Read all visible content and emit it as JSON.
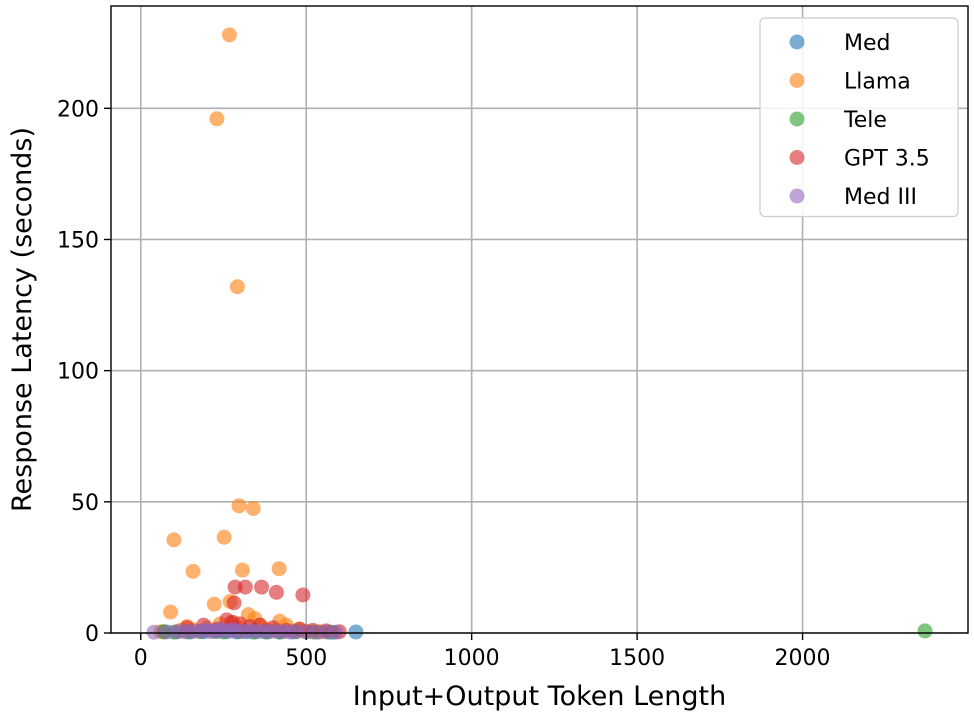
{
  "chart_data": {
    "type": "scatter",
    "title": "",
    "xlabel": "Input+Output Token Length",
    "ylabel": "Response Latency (seconds)",
    "xlim": [
      -90,
      2500
    ],
    "ylim": [
      0,
      239
    ],
    "xticks": [
      0,
      500,
      1000,
      1500,
      2000
    ],
    "yticks": [
      0,
      50,
      100,
      150,
      200
    ],
    "grid": true,
    "legend_position": "top-right",
    "marker_alpha": 0.6,
    "series": [
      {
        "name": "Med",
        "color": "#1f77b4",
        "points": [
          [
            70,
            0.4
          ],
          [
            110,
            0.5
          ],
          [
            150,
            0.4
          ],
          [
            190,
            0.5
          ],
          [
            230,
            0.6
          ],
          [
            260,
            0.5
          ],
          [
            290,
            0.4
          ],
          [
            320,
            0.5
          ],
          [
            350,
            0.5
          ],
          [
            380,
            0.4
          ],
          [
            420,
            0.5
          ],
          [
            460,
            0.4
          ],
          [
            500,
            0.5
          ],
          [
            540,
            0.4
          ],
          [
            580,
            0.3
          ],
          [
            650,
            0.4
          ]
        ]
      },
      {
        "name": "Llama",
        "color": "#ff7f0e",
        "points": [
          [
            268,
            228
          ],
          [
            230,
            196
          ],
          [
            292,
            132
          ],
          [
            100,
            35.5
          ],
          [
            158,
            23.5
          ],
          [
            297,
            48.5
          ],
          [
            340,
            47.5
          ],
          [
            252,
            36.5
          ],
          [
            307,
            24
          ],
          [
            418,
            24.5
          ],
          [
            90,
            8
          ],
          [
            222,
            11
          ],
          [
            270,
            12
          ],
          [
            325,
            7
          ],
          [
            345,
            5.5
          ],
          [
            420,
            4.5
          ],
          [
            440,
            3
          ],
          [
            480,
            1.5
          ],
          [
            120,
            1
          ],
          [
            160,
            1.2
          ],
          [
            200,
            2
          ],
          [
            240,
            3.5
          ],
          [
            280,
            4
          ],
          [
            300,
            2
          ],
          [
            360,
            3
          ],
          [
            380,
            1.5
          ],
          [
            410,
            1
          ],
          [
            460,
            0.8
          ],
          [
            500,
            0.6
          ],
          [
            540,
            0.5
          ],
          [
            60,
            0.5
          ],
          [
            140,
            2.5
          ]
        ]
      },
      {
        "name": "Tele",
        "color": "#2ca02c",
        "points": [
          [
            2370,
            0.8
          ],
          [
            70,
            0.5
          ],
          [
            100,
            0.3
          ],
          [
            140,
            0.4
          ],
          [
            180,
            0.5
          ],
          [
            220,
            0.6
          ],
          [
            250,
            0.4
          ],
          [
            300,
            0.5
          ],
          [
            340,
            0.3
          ],
          [
            380,
            0.4
          ],
          [
            420,
            0.3
          ],
          [
            470,
            0.5
          ],
          [
            520,
            0.4
          ],
          [
            570,
            0.3
          ]
        ]
      },
      {
        "name": "GPT 3.5",
        "color": "#d62728",
        "points": [
          [
            285,
            17.5
          ],
          [
            316,
            17.5
          ],
          [
            365,
            17.5
          ],
          [
            410,
            15.5
          ],
          [
            490,
            14.5
          ],
          [
            282,
            11.5
          ],
          [
            275,
            4
          ],
          [
            190,
            3
          ],
          [
            140,
            2
          ],
          [
            230,
            1.5
          ],
          [
            260,
            5
          ],
          [
            300,
            3.5
          ],
          [
            330,
            2.5
          ],
          [
            360,
            3
          ],
          [
            400,
            2
          ],
          [
            440,
            1
          ],
          [
            480,
            1.5
          ],
          [
            520,
            1
          ],
          [
            560,
            0.8
          ],
          [
            600,
            0.5
          ]
        ]
      },
      {
        "name": "Med III",
        "color": "#9467bd",
        "points": [
          [
            40,
            0.3
          ],
          [
            80,
            0.4
          ],
          [
            110,
            0.5
          ],
          [
            130,
            0.6
          ],
          [
            150,
            0.5
          ],
          [
            170,
            0.7
          ],
          [
            190,
            0.8
          ],
          [
            210,
            0.6
          ],
          [
            230,
            0.7
          ],
          [
            250,
            0.9
          ],
          [
            270,
            0.8
          ],
          [
            290,
            0.7
          ],
          [
            310,
            0.6
          ],
          [
            330,
            0.8
          ],
          [
            350,
            0.7
          ],
          [
            370,
            0.6
          ],
          [
            390,
            0.5
          ],
          [
            410,
            0.6
          ],
          [
            430,
            0.5
          ],
          [
            450,
            0.4
          ],
          [
            470,
            0.5
          ],
          [
            500,
            0.4
          ],
          [
            530,
            0.3
          ],
          [
            560,
            0.4
          ],
          [
            590,
            0.3
          ],
          [
            200,
            1.2
          ],
          [
            240,
            1.5
          ],
          [
            280,
            1.3
          ]
        ]
      }
    ]
  }
}
